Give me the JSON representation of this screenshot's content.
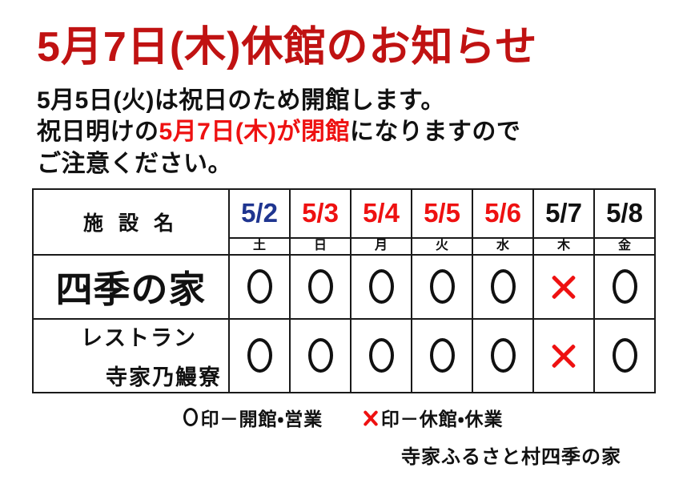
{
  "page": {
    "title": "5月7日(木)休館のお知らせ",
    "footer": "寺家ふるさと村四季の家"
  },
  "notice": {
    "line1": "5月5日(火)は祝日のため開館します。",
    "line2_prefix": "祝日明けの",
    "line2_highlight": "5月7日(木)が閉館",
    "line2_suffix": "になりますので",
    "line3": "ご注意ください。"
  },
  "schedule": {
    "facility_header": "施 設 名",
    "dates": [
      {
        "label": "5/2",
        "day": "土",
        "tone": "blue"
      },
      {
        "label": "5/3",
        "day": "日",
        "tone": "red"
      },
      {
        "label": "5/4",
        "day": "月",
        "tone": "red"
      },
      {
        "label": "5/5",
        "day": "火",
        "tone": "red"
      },
      {
        "label": "5/6",
        "day": "水",
        "tone": "red"
      },
      {
        "label": "5/7",
        "day": "木",
        "tone": "black"
      },
      {
        "label": "5/8",
        "day": "金",
        "tone": "black"
      }
    ],
    "rows": [
      {
        "name_lines": [
          "四季の家"
        ],
        "values": [
          "○",
          "○",
          "○",
          "○",
          "○",
          "×",
          "○"
        ]
      },
      {
        "name_lines": [
          "レストラン",
          "寺家乃鰻寮"
        ],
        "values": [
          "○",
          "○",
          "○",
          "○",
          "○",
          "×",
          "○"
        ]
      }
    ]
  },
  "legend": {
    "open_mark": "○",
    "open_label": "印－開館・営業",
    "closed_mark": "×",
    "closed_label": "印－休館・休業"
  },
  "colors": {
    "title_red": "#c01212",
    "accent_red": "#ee1111",
    "date_blue": "#1f3590",
    "ink": "#111111"
  }
}
